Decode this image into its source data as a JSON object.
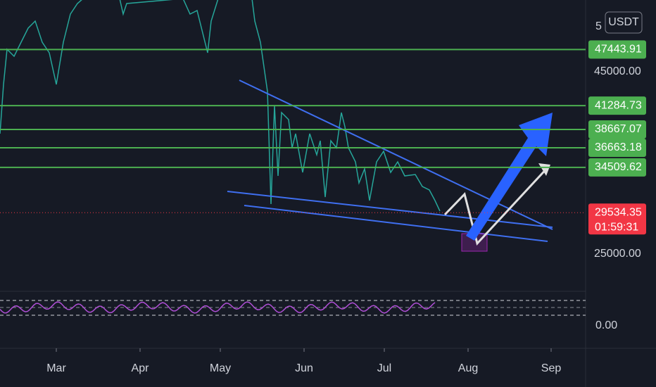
{
  "currency": "USDT",
  "top_label_fragment": "5",
  "axis_labels": [
    "45000.00",
    "25000.00"
  ],
  "levels": [
    "47443.91",
    "41284.73",
    "38667.07",
    "36663.18",
    "34509.62"
  ],
  "last_price": "29534.35",
  "countdown": "01:59:31",
  "rsi_axis_label": "0.00",
  "months": [
    "Mar",
    "Apr",
    "May",
    "Jun",
    "Jul",
    "Aug",
    "Sep"
  ]
}
